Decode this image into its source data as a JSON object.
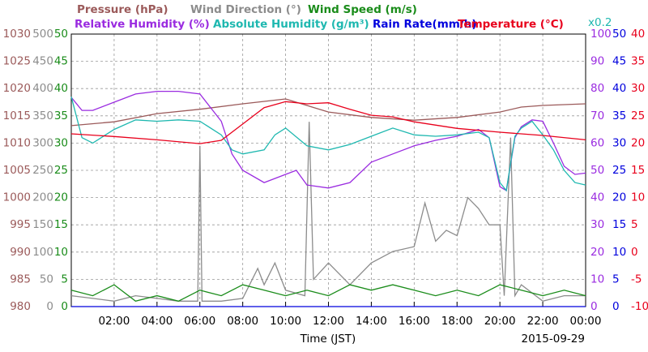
{
  "chart_data": {
    "type": "line",
    "x_label": "Time (JST)",
    "date": "2015-09-29",
    "scale_note": "x0.2",
    "xlim": [
      0,
      24
    ],
    "xticks": [
      {
        "value": 2,
        "label": "02:00"
      },
      {
        "value": 4,
        "label": "04:00"
      },
      {
        "value": 6,
        "label": "06:00"
      },
      {
        "value": 8,
        "label": "08:00"
      },
      {
        "value": 10,
        "label": "10:00"
      },
      {
        "value": 12,
        "label": "12:00"
      },
      {
        "value": 14,
        "label": "14:00"
      },
      {
        "value": 16,
        "label": "16:00"
      },
      {
        "value": 18,
        "label": "18:00"
      },
      {
        "value": 20,
        "label": "20:00"
      },
      {
        "value": 22,
        "label": "22:00"
      },
      {
        "value": 24,
        "label": "00:00"
      }
    ],
    "grid": true,
    "axes": [
      {
        "side": "left",
        "color": "#9b5a5a",
        "ylim": [
          980,
          1030
        ],
        "yticks": [
          980,
          985,
          990,
          995,
          1000,
          1005,
          1010,
          1015,
          1020,
          1025,
          1030
        ]
      },
      {
        "side": "left",
        "color": "#8c8c8c",
        "ylim": [
          0,
          500
        ],
        "yticks": [
          0,
          50,
          100,
          150,
          200,
          250,
          300,
          350,
          400,
          450,
          500
        ]
      },
      {
        "side": "left",
        "color": "#1a8c1a",
        "ylim": [
          0,
          50
        ],
        "yticks": [
          0,
          5,
          10,
          15,
          20,
          25,
          30,
          35,
          40,
          45,
          50
        ]
      },
      {
        "side": "right",
        "color": "#9a2be0",
        "ylim": [
          0,
          100
        ],
        "yticks": [
          0,
          10,
          20,
          30,
          40,
          50,
          60,
          70,
          80,
          90,
          100
        ]
      },
      {
        "side": "right",
        "color": "#0000dd",
        "ylim": [
          0,
          50
        ],
        "yticks": [
          0,
          5,
          10,
          15,
          20,
          25,
          30,
          35,
          40,
          45,
          50
        ]
      },
      {
        "side": "right",
        "color": "#e8001c",
        "ylim": [
          -10,
          40
        ],
        "yticks": [
          -10,
          -5,
          0,
          5,
          10,
          15,
          20,
          25,
          30,
          35,
          40
        ]
      }
    ],
    "series": [
      {
        "name": "Pressure (hPa)",
        "color": "#9b5a5a",
        "axis": 0,
        "x": [
          0,
          2,
          4,
          6,
          8,
          10,
          12,
          14,
          16,
          18,
          20,
          21,
          22,
          24
        ],
        "values": [
          1013.2,
          1013.9,
          1015.4,
          1016.2,
          1017.2,
          1018.1,
          1015.7,
          1014.7,
          1014.2,
          1014.7,
          1015.7,
          1016.6,
          1016.9,
          1017.2
        ]
      },
      {
        "name": "Wind Direction (°)",
        "color": "#8c8c8c",
        "axis": 1,
        "x": [
          0,
          1,
          2,
          3,
          4,
          5,
          5.9,
          6,
          6.1,
          7,
          8,
          8.7,
          9,
          9.5,
          10,
          10.9,
          11.1,
          11.3,
          12,
          13,
          14,
          15,
          16,
          16.5,
          17,
          17.5,
          18,
          18.5,
          19,
          19.5,
          20,
          20.2,
          20.5,
          20.7,
          21,
          22,
          23,
          24
        ],
        "values": [
          20,
          15,
          10,
          20,
          15,
          10,
          10,
          295,
          10,
          10,
          15,
          70,
          40,
          80,
          30,
          20,
          339,
          50,
          80,
          40,
          80,
          101,
          110,
          190,
          120,
          140,
          130,
          200,
          180,
          150,
          150,
          20,
          310,
          20,
          40,
          10,
          20,
          20
        ]
      },
      {
        "name": "Wind Speed (m/s)",
        "color": "#1a8c1a",
        "axis": 2,
        "x": [
          0,
          1,
          2,
          3,
          4,
          5,
          6,
          7,
          8,
          9,
          10,
          11,
          12,
          13,
          14,
          15,
          16,
          17,
          18,
          19,
          20,
          21,
          22,
          23,
          24
        ],
        "values": [
          3,
          2,
          4,
          1,
          2,
          1,
          3,
          2,
          4,
          3,
          2,
          3,
          2,
          4,
          3,
          4,
          3,
          2,
          3,
          2,
          4,
          3,
          2,
          3,
          2
        ]
      },
      {
        "name": "Relative Humidity (%)",
        "color": "#9a2be0",
        "axis": 3,
        "x": [
          0,
          0.5,
          1,
          2,
          3,
          4,
          5,
          6,
          7,
          7.5,
          8,
          9,
          10,
          10.5,
          11,
          12,
          13,
          14,
          15,
          16,
          17,
          18,
          19,
          19.5,
          20,
          20.3,
          20.7,
          21,
          21.5,
          22,
          22.5,
          23,
          23.5,
          24
        ],
        "values": [
          76.8,
          72,
          72,
          75,
          78,
          79,
          79,
          78,
          68,
          56,
          50,
          45.5,
          48.5,
          50,
          44.6,
          43.5,
          45.5,
          53,
          56,
          59,
          61,
          62.5,
          65,
          62,
          44,
          42.6,
          62,
          66,
          68.5,
          68,
          60,
          51.5,
          48.5,
          49
        ]
      },
      {
        "name": "Absolute Humidity (g/m³)",
        "color": "#1fb8b0",
        "axis": 3,
        "x": [
          0,
          0.5,
          1,
          2,
          3,
          4,
          5,
          6,
          7,
          7.5,
          8,
          9,
          9.5,
          10,
          11,
          12,
          13,
          14,
          15,
          16,
          17,
          18,
          19,
          19.5,
          20,
          20.3,
          20.7,
          21,
          21.5,
          22,
          22.5,
          23,
          23.5,
          24
        ],
        "values": [
          77,
          62,
          60,
          65,
          68.5,
          68,
          68.5,
          68,
          63,
          57.5,
          56,
          57.5,
          63,
          65.5,
          59,
          57.5,
          59.5,
          62.5,
          65.5,
          63,
          62.5,
          63,
          64,
          62,
          45.5,
          42.6,
          62.5,
          65.5,
          68,
          63,
          57.5,
          50,
          45.5,
          44.6
        ]
      },
      {
        "name": "Rain Rate(mm/h)",
        "color": "#0000dd",
        "axis": 4,
        "x": [
          0,
          6,
          12,
          18,
          24
        ],
        "values": [
          0,
          0,
          0,
          0,
          0
        ]
      },
      {
        "name": "Temperature (°C)",
        "color": "#e8001c",
        "axis": 5,
        "x": [
          0,
          2,
          4,
          6,
          7,
          8,
          9,
          10,
          11,
          12,
          13,
          14,
          15,
          16,
          18,
          20,
          22,
          24
        ],
        "values": [
          21.7,
          21.2,
          20.6,
          19.9,
          20.5,
          23.5,
          26.5,
          27.6,
          27.2,
          27.4,
          26.2,
          25.1,
          24.8,
          23.9,
          22.7,
          22,
          21.4,
          20.6
        ]
      }
    ]
  }
}
